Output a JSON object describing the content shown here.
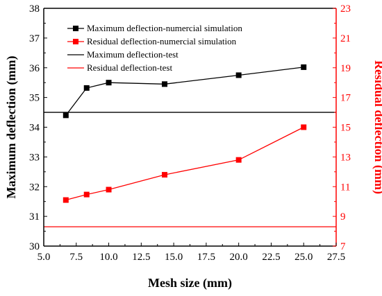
{
  "chart_data": {
    "type": "line",
    "xlabel": "Mesh size (mm)",
    "ylabel_left": "Maximum deflection (mm)",
    "ylabel_right": "Residual deflection (mm)",
    "xlim": [
      5.0,
      27.5
    ],
    "ylim_left": [
      30,
      38
    ],
    "ylim_right": [
      7,
      23
    ],
    "x_ticks": [
      5.0,
      7.5,
      10.0,
      12.5,
      15.0,
      17.5,
      20.0,
      22.5,
      25.0,
      27.5
    ],
    "x_tick_labels": [
      "5.0",
      "7.5",
      "10.0",
      "12.5",
      "15.0",
      "17.5",
      "20.0",
      "22.5",
      "25.0",
      "27.5"
    ],
    "y_left_ticks": [
      30,
      31,
      32,
      33,
      34,
      35,
      36,
      37,
      38
    ],
    "y_left_tick_labels": [
      "30",
      "31",
      "32",
      "33",
      "34",
      "35",
      "36",
      "37",
      "38"
    ],
    "y_right_ticks": [
      7,
      9,
      11,
      13,
      15,
      17,
      19,
      21,
      23
    ],
    "y_right_tick_labels": [
      "7",
      "9",
      "11",
      "13",
      "15",
      "17",
      "19",
      "21",
      "23"
    ],
    "legend_position": "top-left",
    "colors": {
      "max": "#000000",
      "residual": "#ff0000"
    },
    "series": [
      {
        "name": "Maximum deflection-numercial simulation",
        "axis": "left",
        "color": "#000000",
        "marker": "square",
        "x": [
          6.7,
          8.3,
          10.0,
          14.3,
          20.0,
          25.0
        ],
        "y": [
          34.4,
          35.32,
          35.5,
          35.45,
          35.75,
          36.02
        ]
      },
      {
        "name": "Residual deflection-numercial simulation",
        "axis": "right",
        "color": "#ff0000",
        "marker": "square",
        "x": [
          6.7,
          8.3,
          10.0,
          14.3,
          20.0,
          25.0
        ],
        "y": [
          10.1,
          10.47,
          10.8,
          11.8,
          12.8,
          15.0
        ]
      },
      {
        "name": "Maximum deflection-test",
        "axis": "left",
        "color": "#000000",
        "marker": "none",
        "constant": 34.5
      },
      {
        "name": "Residual deflection-test",
        "axis": "right",
        "color": "#ff0000",
        "marker": "none",
        "constant": 8.3
      }
    ]
  }
}
